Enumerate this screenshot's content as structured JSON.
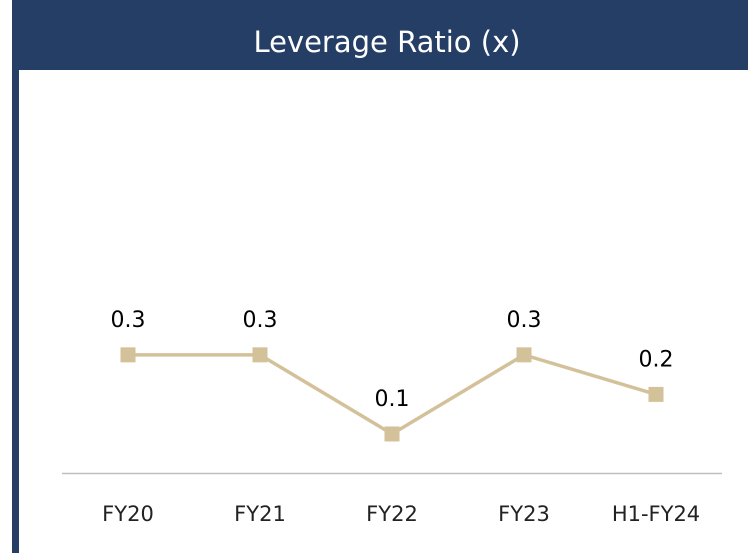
{
  "chart_data": {
    "type": "line",
    "title": "Leverage Ratio (x)",
    "categories": [
      "FY20",
      "FY21",
      "FY22",
      "FY23",
      "H1-FY24"
    ],
    "values": [
      0.3,
      0.3,
      0.1,
      0.3,
      0.2
    ],
    "color": "#d3c19a",
    "ylim": [
      0,
      1.0
    ]
  }
}
